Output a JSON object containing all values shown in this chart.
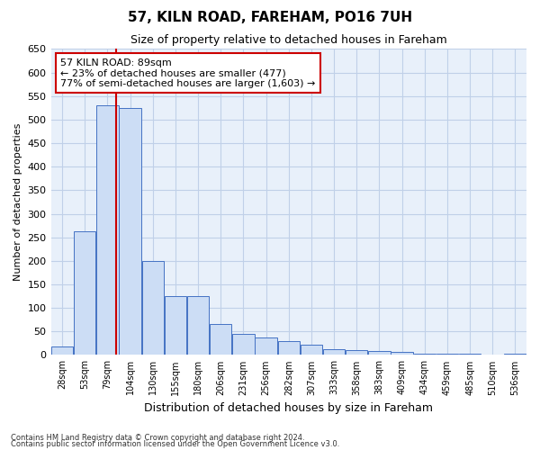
{
  "title": "57, KILN ROAD, FAREHAM, PO16 7UH",
  "subtitle": "Size of property relative to detached houses in Fareham",
  "xlabel": "Distribution of detached houses by size in Fareham",
  "ylabel": "Number of detached properties",
  "footnote1": "Contains HM Land Registry data © Crown copyright and database right 2024.",
  "footnote2": "Contains public sector information licensed under the Open Government Licence v3.0.",
  "bins": [
    "28sqm",
    "53sqm",
    "79sqm",
    "104sqm",
    "130sqm",
    "155sqm",
    "180sqm",
    "206sqm",
    "231sqm",
    "256sqm",
    "282sqm",
    "307sqm",
    "333sqm",
    "358sqm",
    "383sqm",
    "409sqm",
    "434sqm",
    "459sqm",
    "485sqm",
    "510sqm",
    "536sqm"
  ],
  "values": [
    18,
    262,
    530,
    525,
    200,
    125,
    125,
    65,
    45,
    38,
    30,
    22,
    12,
    10,
    8,
    7,
    3,
    3,
    2,
    1,
    2
  ],
  "bar_color": "#ccddf5",
  "bar_edge_color": "#4472c4",
  "vline_color": "#cc0000",
  "vline_x": 2.5,
  "annotation_text": "57 KILN ROAD: 89sqm\n← 23% of detached houses are smaller (477)\n77% of semi-detached houses are larger (1,603) →",
  "annotation_box_color": "#ffffff",
  "annotation_box_edge": "#cc0000",
  "ylim": [
    0,
    650
  ],
  "yticks": [
    0,
    50,
    100,
    150,
    200,
    250,
    300,
    350,
    400,
    450,
    500,
    550,
    600,
    650
  ],
  "grid_color": "#c0d0e8",
  "bg_color": "#e8f0fa",
  "title_fontsize": 11,
  "subtitle_fontsize": 9,
  "ylabel_fontsize": 8,
  "xlabel_fontsize": 9,
  "tick_fontsize": 7,
  "ytick_fontsize": 8,
  "annot_fontsize": 8,
  "footnote_fontsize": 6
}
